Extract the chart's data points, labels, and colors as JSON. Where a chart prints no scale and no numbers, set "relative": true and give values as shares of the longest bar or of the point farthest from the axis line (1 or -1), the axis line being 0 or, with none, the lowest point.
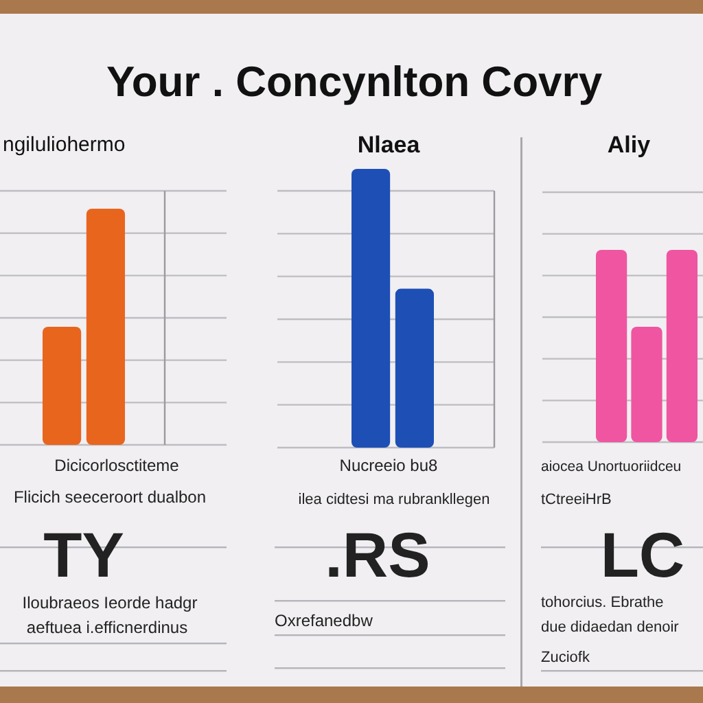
{
  "chart_data": [
    {
      "type": "other",
      "title": "Your . Concynlton Covry"
    },
    {
      "type": "bar",
      "title": "ngiluliohermo",
      "categories": [
        null,
        null
      ],
      "values": [
        0.5,
        1
      ],
      "color": "#e8651e",
      "relative": true,
      "grid": true,
      "annotations": [
        "Dicicorlosctiteme",
        "Flicich seeceroort dualbon",
        "TY",
        "Iloubraeos Ieorde hadgr",
        "aeftuea i.efficnerdinus"
      ]
    },
    {
      "type": "bar",
      "title": "Nlaea",
      "categories": [
        null,
        null
      ],
      "values": [
        1,
        0.57
      ],
      "color": "#1d4fb5",
      "relative": true,
      "grid": true,
      "annotations": [
        "Nucreeio bu8",
        "ilea cidtesi ma rubrankllegen",
        ".RS",
        "Oxrefanedbw"
      ]
    },
    {
      "type": "bar",
      "title": "Aliy",
      "categories": [
        null,
        null,
        null
      ],
      "values": [
        1,
        0.6,
        1
      ],
      "color": "#ef55a0",
      "relative": true,
      "grid": true,
      "annotations": [
        "aiocea Unortuoriidceu",
        "tCtreeiHrB",
        "LC",
        "tohorcius. Ebrathe",
        "due didaedan denoir",
        "Zuciofk"
      ]
    }
  ]
}
